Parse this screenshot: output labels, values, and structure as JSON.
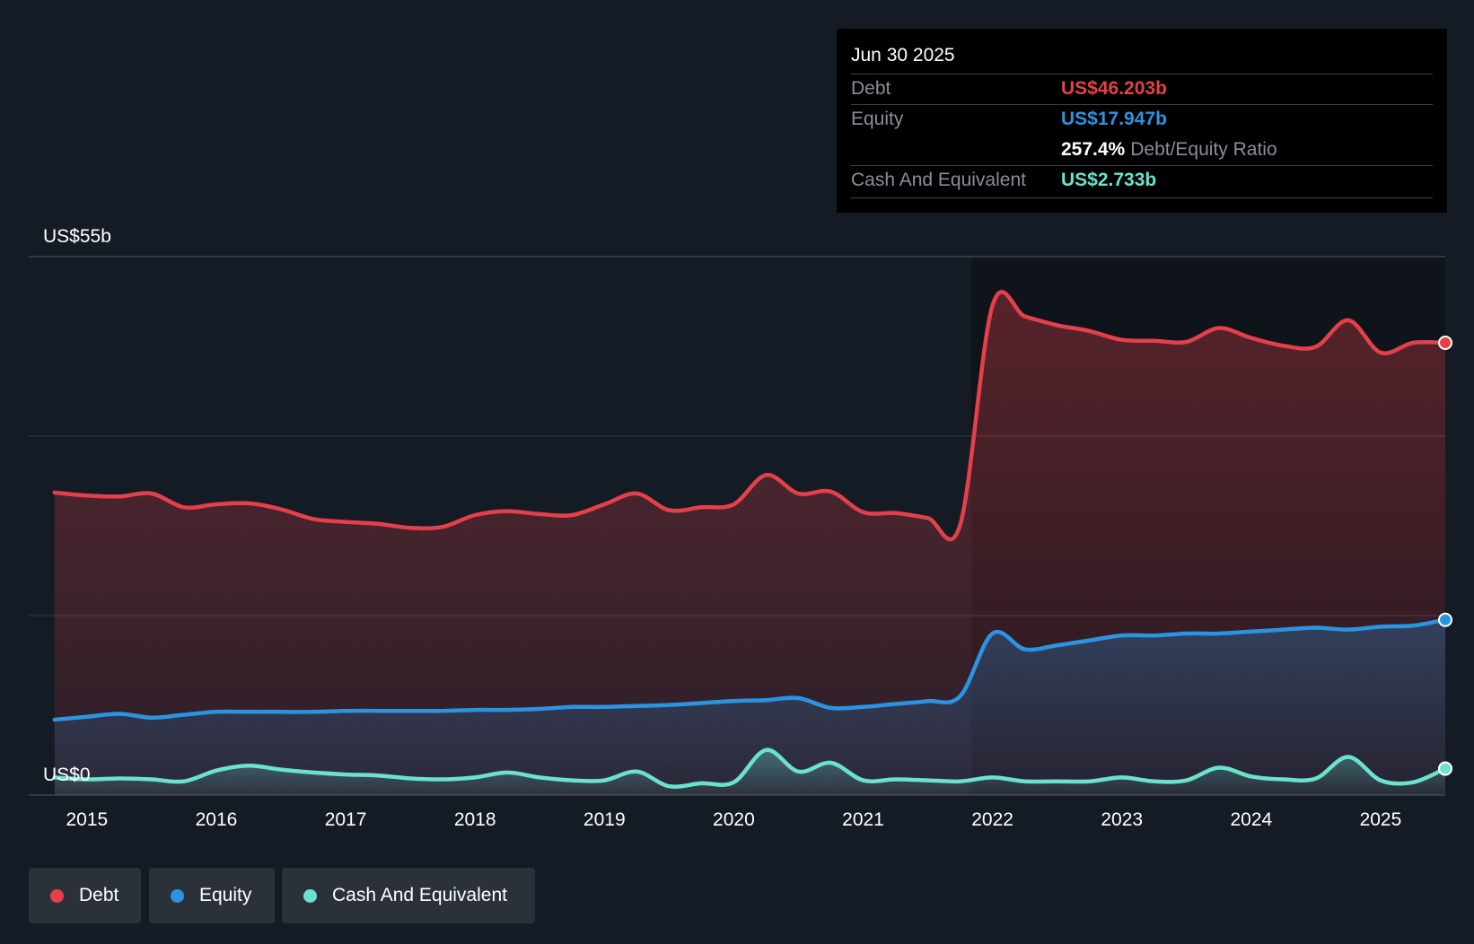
{
  "tooltip": {
    "date": "Jun 30 2025",
    "debt_label": "Debt",
    "debt_value": "US$46.203b",
    "equity_label": "Equity",
    "equity_value": "US$17.947b",
    "ratio_value": "257.4%",
    "ratio_label": "Debt/Equity Ratio",
    "cash_label": "Cash And Equivalent",
    "cash_value": "US$2.733b"
  },
  "legend": {
    "debt": "Debt",
    "equity": "Equity",
    "cash": "Cash And Equivalent"
  },
  "colors": {
    "debt": "#e5404a",
    "equity": "#2b94e2",
    "cash": "#6be2cf",
    "background": "#151b24"
  },
  "chart_data": {
    "type": "area",
    "title": "",
    "ylim": [
      0,
      55
    ],
    "y_top_label": "US$55b",
    "y_bottom_label": "US$0",
    "x_tick_labels": [
      "2015",
      "2016",
      "2017",
      "2018",
      "2019",
      "2020",
      "2021",
      "2022",
      "2023",
      "2024",
      "2025"
    ],
    "x_ticks": [
      2015.0,
      2016.0,
      2017.0,
      2018.0,
      2019.0,
      2020.0,
      2021.0,
      2022.0,
      2023.0,
      2024.0,
      2025.0
    ],
    "x_range": [
      2014.55,
      2025.5
    ],
    "series": [
      {
        "name": "Debt",
        "x": [
          2014.75,
          2015.0,
          2015.25,
          2015.5,
          2015.75,
          2016.0,
          2016.25,
          2016.5,
          2016.75,
          2017.0,
          2017.25,
          2017.5,
          2017.75,
          2018.0,
          2018.25,
          2018.5,
          2018.75,
          2019.0,
          2019.25,
          2019.5,
          2019.75,
          2020.0,
          2020.25,
          2020.5,
          2020.75,
          2021.0,
          2021.25,
          2021.5,
          2021.75,
          2022.0,
          2022.25,
          2022.5,
          2022.75,
          2023.0,
          2023.25,
          2023.5,
          2023.75,
          2024.0,
          2024.25,
          2024.5,
          2024.75,
          2025.0,
          2025.25,
          2025.5
        ],
        "values": [
          30.9,
          30.6,
          30.5,
          30.8,
          29.4,
          29.7,
          29.8,
          29.2,
          28.2,
          27.9,
          27.7,
          27.3,
          27.4,
          28.6,
          29.0,
          28.7,
          28.6,
          29.7,
          30.8,
          29.1,
          29.4,
          29.7,
          32.7,
          30.8,
          31.0,
          28.9,
          28.8,
          28.3,
          27.6,
          50.0,
          48.9,
          48.0,
          47.4,
          46.5,
          46.4,
          46.3,
          47.7,
          46.7,
          45.9,
          45.8,
          48.5,
          45.2,
          46.2,
          46.2
        ]
      },
      {
        "name": "Equity",
        "x": [
          2014.75,
          2015.0,
          2015.25,
          2015.5,
          2015.75,
          2016.0,
          2016.25,
          2016.5,
          2016.75,
          2017.0,
          2017.25,
          2017.5,
          2017.75,
          2018.0,
          2018.25,
          2018.5,
          2018.75,
          2019.0,
          2019.25,
          2019.5,
          2019.75,
          2020.0,
          2020.25,
          2020.5,
          2020.75,
          2021.0,
          2021.25,
          2021.5,
          2021.75,
          2022.0,
          2022.25,
          2022.5,
          2022.75,
          2023.0,
          2023.25,
          2023.5,
          2023.75,
          2024.0,
          2024.25,
          2024.5,
          2024.75,
          2025.0,
          2025.25,
          2025.5
        ],
        "values": [
          7.7,
          8.0,
          8.3,
          7.9,
          8.2,
          8.5,
          8.5,
          8.5,
          8.5,
          8.6,
          8.6,
          8.6,
          8.6,
          8.7,
          8.7,
          8.8,
          9.0,
          9.0,
          9.1,
          9.2,
          9.4,
          9.6,
          9.7,
          9.9,
          8.9,
          9.0,
          9.3,
          9.6,
          10.1,
          16.5,
          14.9,
          15.3,
          15.8,
          16.3,
          16.3,
          16.5,
          16.5,
          16.7,
          16.9,
          17.1,
          16.9,
          17.2,
          17.3,
          17.9
        ]
      },
      {
        "name": "Cash And Equivalent",
        "x": [
          2014.75,
          2015.0,
          2015.25,
          2015.5,
          2015.75,
          2016.0,
          2016.25,
          2016.5,
          2016.75,
          2017.0,
          2017.25,
          2017.5,
          2017.75,
          2018.0,
          2018.25,
          2018.5,
          2018.75,
          2019.0,
          2019.25,
          2019.5,
          2019.75,
          2020.0,
          2020.25,
          2020.5,
          2020.75,
          2021.0,
          2021.25,
          2021.5,
          2021.75,
          2022.0,
          2022.25,
          2022.5,
          2022.75,
          2023.0,
          2023.25,
          2023.5,
          2023.75,
          2024.0,
          2024.25,
          2024.5,
          2024.75,
          2025.0,
          2025.25,
          2025.5
        ],
        "values": [
          1.8,
          1.6,
          1.7,
          1.6,
          1.4,
          2.5,
          3.0,
          2.6,
          2.3,
          2.1,
          2.0,
          1.7,
          1.6,
          1.8,
          2.3,
          1.8,
          1.5,
          1.5,
          2.4,
          0.9,
          1.2,
          1.3,
          4.6,
          2.4,
          3.3,
          1.5,
          1.6,
          1.5,
          1.4,
          1.8,
          1.4,
          1.4,
          1.4,
          1.8,
          1.4,
          1.5,
          2.8,
          1.9,
          1.6,
          1.7,
          3.9,
          1.5,
          1.3,
          2.7
        ]
      }
    ]
  }
}
